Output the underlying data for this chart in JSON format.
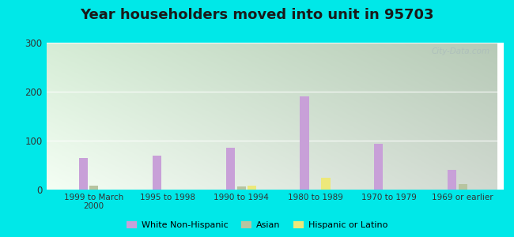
{
  "title": "Year householders moved into unit in 95703",
  "categories": [
    "1999 to March\n2000",
    "1995 to 1998",
    "1990 to 1994",
    "1980 to 1989",
    "1970 to 1979",
    "1969 or earlier"
  ],
  "series": {
    "White Non-Hispanic": [
      65,
      70,
      85,
      190,
      93,
      40
    ],
    "Asian": [
      8,
      0,
      7,
      0,
      0,
      12
    ],
    "Hispanic or Latino": [
      0,
      0,
      8,
      25,
      0,
      0
    ]
  },
  "colors": {
    "White Non-Hispanic": "#c8a0d8",
    "Asian": "#b8c4a0",
    "Hispanic or Latino": "#ede87a"
  },
  "ylim": [
    0,
    300
  ],
  "yticks": [
    0,
    100,
    200,
    300
  ],
  "outer_bg": "#00e8e8",
  "bar_width": 0.12,
  "title_fontsize": 13,
  "watermark": "City-Data.com"
}
